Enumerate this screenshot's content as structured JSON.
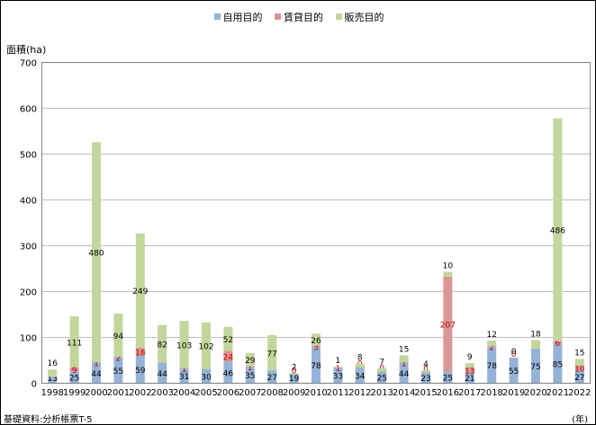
{
  "chart_data": {
    "type": "bar",
    "stacked": true,
    "ylabel": "面積(ha)",
    "xunit": "(年)",
    "source": "基礎資料:分析帳票T-5",
    "ylim": [
      0,
      700
    ],
    "yticks": [
      0,
      100,
      200,
      300,
      400,
      500,
      600,
      700
    ],
    "grid": true,
    "legend_position": "top-center",
    "categories": [
      "1998",
      "1999",
      "2000",
      "2001",
      "2002",
      "2003",
      "2004",
      "2005",
      "2006",
      "2007",
      "2008",
      "2009",
      "2010",
      "2011",
      "2012",
      "2013",
      "2014",
      "2015",
      "2016",
      "2017",
      "2018",
      "2019",
      "2020",
      "2021",
      "2022"
    ],
    "series": [
      {
        "name": "自用目的",
        "color": "#95b3d7",
        "values": [
          13,
          25,
          44,
          55,
          59,
          44,
          31,
          30,
          46,
          35,
          27,
          19,
          78,
          33,
          34,
          25,
          44,
          23,
          25,
          21,
          78,
          55,
          75,
          85,
          27
        ]
      },
      {
        "name": "賃貸目的",
        "color": "#d99694",
        "values": [
          0,
          9,
          1,
          2,
          18,
          0,
          1,
          0,
          24,
          1,
          0,
          0,
          3,
          1,
          0,
          0,
          1,
          0,
          207,
          13,
          2,
          0,
          0,
          6,
          10
        ]
      },
      {
        "name": "販売目的",
        "color": "#c3d69b",
        "values": [
          16,
          111,
          480,
          94,
          249,
          82,
          103,
          102,
          52,
          29,
          77,
          2,
          26,
          1,
          8,
          7,
          15,
          4,
          10,
          9,
          12,
          0,
          18,
          486,
          15
        ]
      }
    ]
  }
}
